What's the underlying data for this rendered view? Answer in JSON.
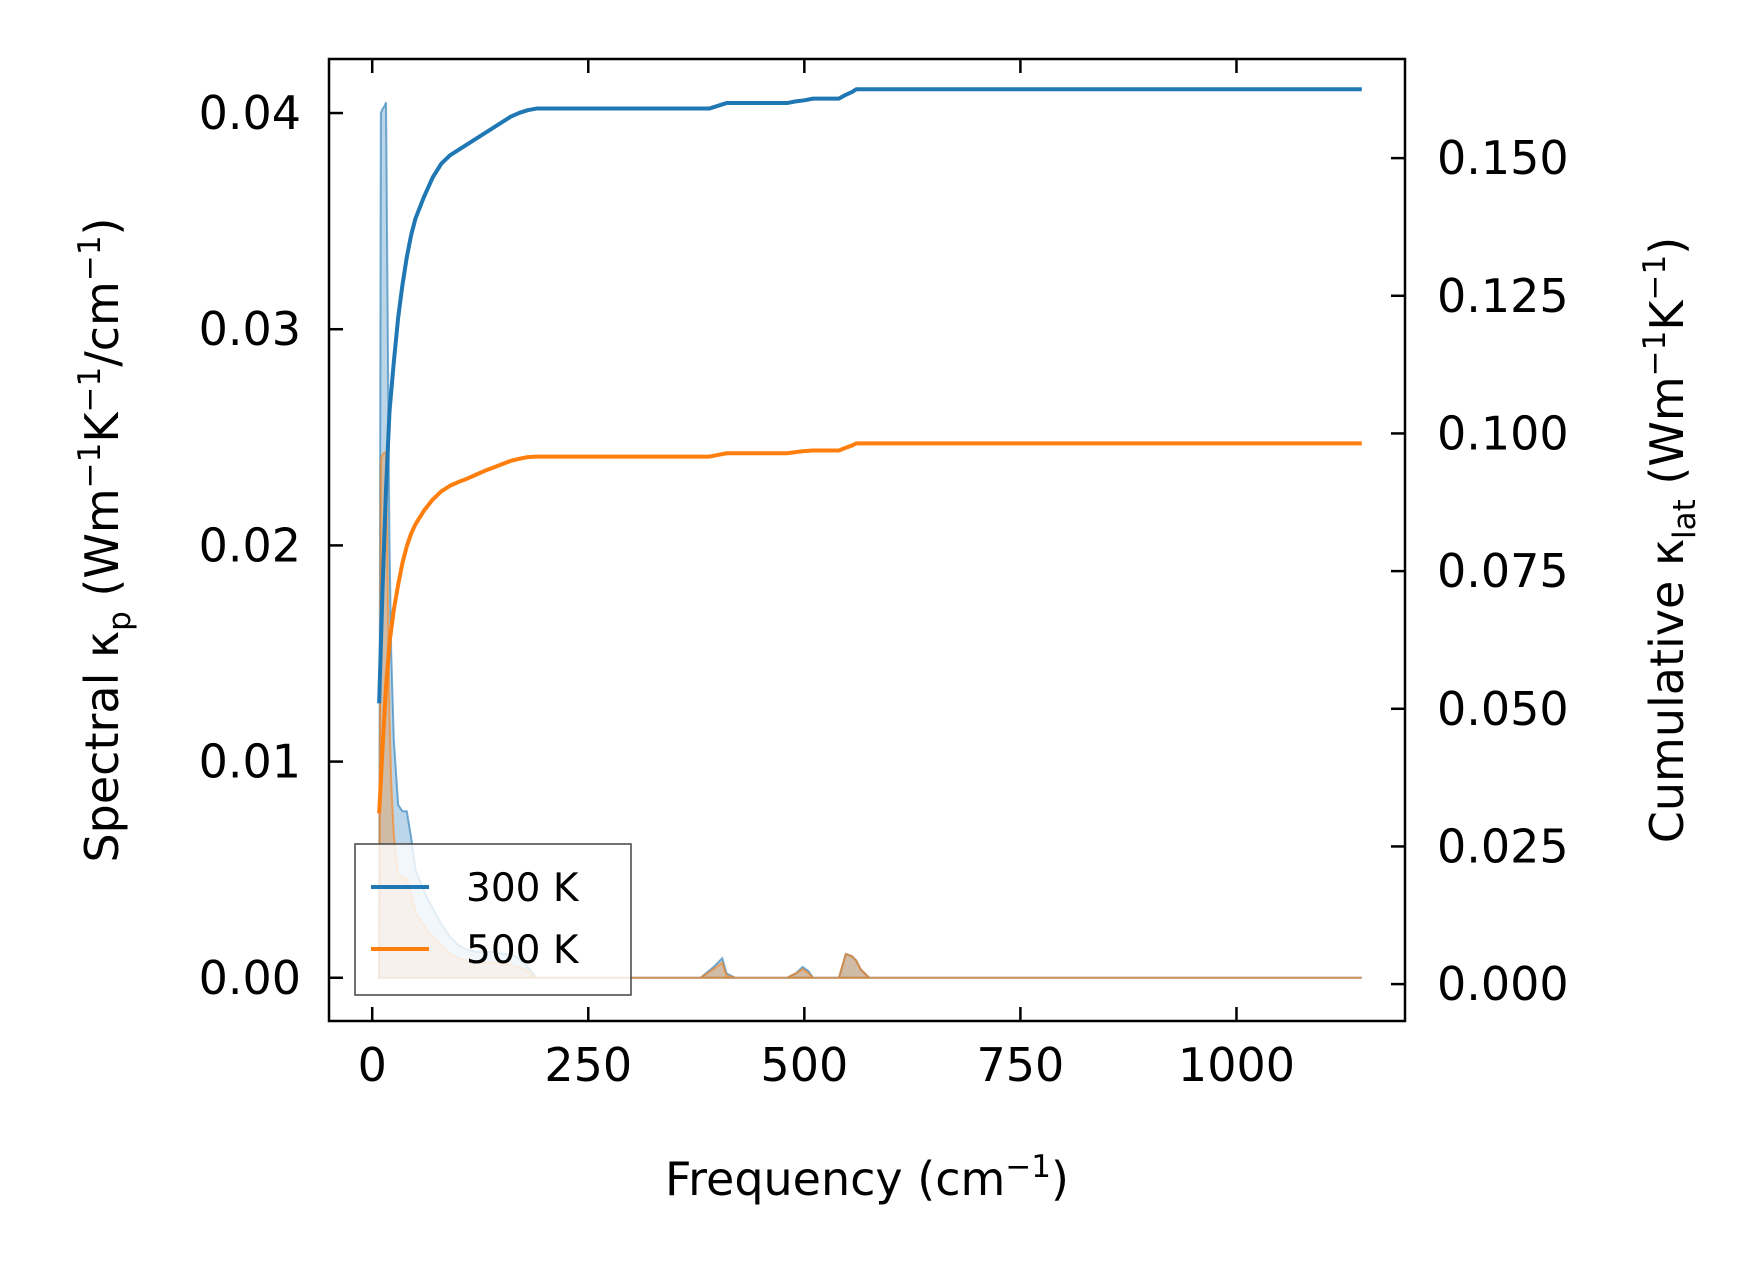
{
  "chart_data": {
    "type": "line",
    "x_label": "Frequency (cm",
    "x_label_sup": "−1",
    "x_label_end": ")",
    "y_left_label": {
      "a": "Spectral κ",
      "a_sub": "p",
      "b": " (Wm",
      "b_sup": "−1",
      "c": "K",
      "c_sup": "−1",
      "d": "/cm",
      "d_sup": "−1",
      "e": ")"
    },
    "y_right_label": {
      "a": "Cumulative κ",
      "a_sub": "lat",
      "b": " (Wm",
      "b_sup": "−1",
      "c": "K",
      "c_sup": "−1",
      "d": ")"
    },
    "x_range": [
      -50,
      1195
    ],
    "y_left_range": [
      -0.002,
      0.0425
    ],
    "y_right_range": [
      -0.0067,
      0.168
    ],
    "x_ticks": [
      0,
      250,
      500,
      750,
      1000
    ],
    "x_tick_labels": [
      "0",
      "250",
      "500",
      "750",
      "1000"
    ],
    "y_left_ticks": [
      0.0,
      0.01,
      0.02,
      0.03,
      0.04
    ],
    "y_left_tick_labels": [
      "0.00",
      "0.01",
      "0.02",
      "0.03",
      "0.04"
    ],
    "y_right_ticks": [
      0.0,
      0.025,
      0.05,
      0.075,
      0.1,
      0.125,
      0.15
    ],
    "y_right_tick_labels": [
      "0.000",
      "0.025",
      "0.050",
      "0.075",
      "0.100",
      "0.125",
      "0.150"
    ],
    "legend": {
      "location": "lower-left",
      "entries": [
        "300 K",
        "500 K"
      ]
    },
    "series": [
      {
        "name": "300 K",
        "color": "#1f77b4",
        "spectral": {
          "x": [
            8,
            10,
            12,
            14,
            16,
            18,
            20,
            22,
            25,
            30,
            35,
            40,
            45,
            50,
            55,
            60,
            70,
            80,
            90,
            100,
            110,
            120,
            130,
            140,
            150,
            160,
            170,
            180,
            190,
            380,
            395,
            405,
            410,
            420,
            480,
            490,
            498,
            505,
            510,
            520,
            540,
            548,
            555,
            560,
            565,
            575,
            1145
          ],
          "y": [
            0.0,
            0.04,
            0.0402,
            0.0403,
            0.0405,
            0.03,
            0.02,
            0.015,
            0.011,
            0.008,
            0.0077,
            0.0077,
            0.0065,
            0.005,
            0.0045,
            0.004,
            0.0032,
            0.0025,
            0.0019,
            0.0015,
            0.0013,
            0.0012,
            0.0012,
            0.0012,
            0.0011,
            0.0011,
            0.0009,
            0.0005,
            0.0,
            0.0,
            0.0005,
            0.0009,
            0.0002,
            0.0,
            0.0,
            0.0002,
            0.0005,
            0.0003,
            0.0,
            0.0,
            0.0,
            0.0011,
            0.001,
            0.0008,
            0.0004,
            0.0,
            0.0
          ]
        },
        "cumulative": {
          "x": [
            8,
            12,
            16,
            20,
            25,
            30,
            35,
            40,
            45,
            50,
            60,
            70,
            80,
            90,
            100,
            110,
            120,
            130,
            140,
            150,
            160,
            170,
            180,
            190,
            390,
            400,
            410,
            420,
            480,
            490,
            500,
            510,
            520,
            540,
            548,
            555,
            560,
            570,
            1145
          ],
          "y": [
            0.051,
            0.072,
            0.09,
            0.104,
            0.113,
            0.121,
            0.127,
            0.132,
            0.136,
            0.139,
            0.143,
            0.1465,
            0.149,
            0.1505,
            0.1515,
            0.1525,
            0.1535,
            0.1545,
            0.1555,
            0.1565,
            0.1575,
            0.1582,
            0.1587,
            0.159,
            0.159,
            0.1595,
            0.16,
            0.16,
            0.16,
            0.1603,
            0.1605,
            0.1608,
            0.1608,
            0.1608,
            0.1615,
            0.162,
            0.1625,
            0.1625,
            0.1625
          ]
        }
      },
      {
        "name": "500 K",
        "color": "#ff7f0e",
        "spectral": {
          "x": [
            8,
            10,
            12,
            14,
            16,
            18,
            20,
            22,
            25,
            30,
            35,
            40,
            45,
            50,
            55,
            60,
            70,
            80,
            90,
            100,
            110,
            120,
            130,
            140,
            150,
            160,
            170,
            180,
            190,
            380,
            395,
            405,
            410,
            420,
            480,
            490,
            498,
            505,
            510,
            520,
            540,
            548,
            555,
            560,
            565,
            575,
            1145
          ],
          "y": [
            0.0,
            0.024,
            0.0242,
            0.0243,
            0.0243,
            0.018,
            0.012,
            0.009,
            0.0066,
            0.0048,
            0.0046,
            0.0046,
            0.0039,
            0.003,
            0.0027,
            0.0024,
            0.0019,
            0.0015,
            0.0011,
            0.0009,
            0.0008,
            0.0007,
            0.0007,
            0.0007,
            0.0007,
            0.0006,
            0.0005,
            0.0003,
            0.0,
            0.0,
            0.0004,
            0.0007,
            0.0001,
            0.0,
            0.0,
            0.0002,
            0.0004,
            0.0002,
            0.0,
            0.0,
            0.0,
            0.0011,
            0.001,
            0.0008,
            0.0004,
            0.0,
            0.0
          ]
        },
        "cumulative": {
          "x": [
            8,
            12,
            16,
            20,
            25,
            30,
            35,
            40,
            45,
            50,
            60,
            70,
            80,
            90,
            100,
            110,
            120,
            130,
            140,
            150,
            160,
            170,
            180,
            190,
            390,
            400,
            410,
            420,
            480,
            490,
            500,
            510,
            520,
            540,
            548,
            555,
            560,
            570,
            1145
          ],
          "y": [
            0.031,
            0.043,
            0.054,
            0.062,
            0.068,
            0.0725,
            0.0765,
            0.0795,
            0.0818,
            0.0835,
            0.086,
            0.088,
            0.0895,
            0.0905,
            0.0912,
            0.0918,
            0.0925,
            0.0932,
            0.0938,
            0.0944,
            0.095,
            0.0954,
            0.0957,
            0.0958,
            0.0958,
            0.0961,
            0.0964,
            0.0964,
            0.0964,
            0.0966,
            0.0968,
            0.0969,
            0.0969,
            0.0969,
            0.0974,
            0.0978,
            0.0982,
            0.0982,
            0.0982
          ]
        }
      }
    ]
  }
}
